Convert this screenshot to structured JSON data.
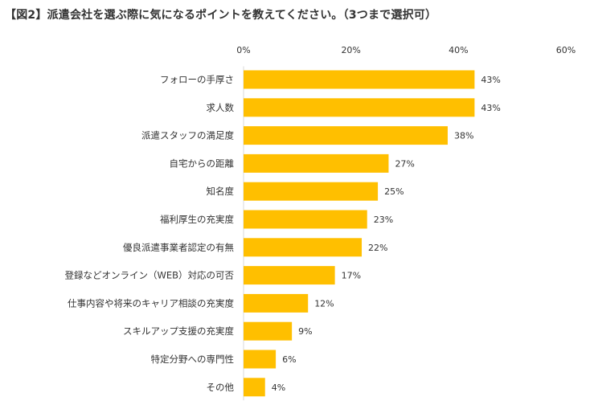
{
  "chart_data": {
    "type": "bar",
    "orientation": "horizontal",
    "title": "【図2】派遣会社を選ぶ際に気になるポイントを教えてください。（3つまで選択可）",
    "categories": [
      "フォローの手厚さ",
      "求人数",
      "派遣スタッフの満足度",
      "自宅からの距離",
      "知名度",
      "福利厚生の充実度",
      "優良派遣事業者認定の有無",
      "登録などオンライン（WEB）対応の可否",
      "仕事内容や将来のキャリア相談の充実度",
      "スキルアップ支援の充実度",
      "特定分野への専門性",
      "その他"
    ],
    "values": [
      43,
      43,
      38,
      27,
      25,
      23,
      22,
      17,
      12,
      9,
      6,
      4
    ],
    "data_labels": [
      "43%",
      "43%",
      "38%",
      "27%",
      "25%",
      "23%",
      "22%",
      "17%",
      "12%",
      "9%",
      "6%",
      "4%"
    ],
    "xlim": [
      0,
      60
    ],
    "ticks": [
      0,
      20,
      40,
      60
    ],
    "tick_labels": [
      "0%",
      "20%",
      "40%",
      "60%"
    ],
    "xlabel": "",
    "ylabel": "",
    "grid": false,
    "bar_color": "#FFBF00"
  }
}
